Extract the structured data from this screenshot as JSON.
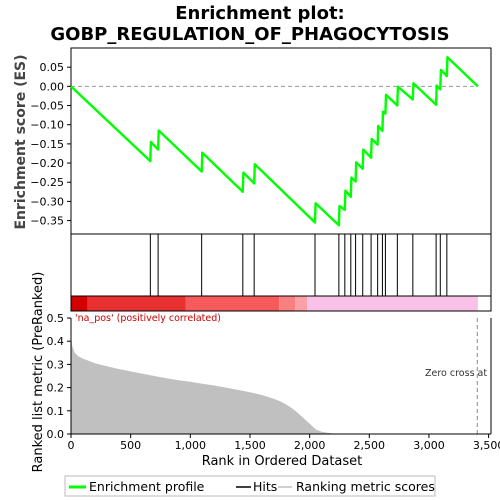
{
  "chart_data": {
    "type": "line",
    "title_line1": "Enrichment plot:",
    "title_line2": "GOBP_REGULATION_OF_PHAGOCYTOSIS",
    "top_panel": {
      "ylabel": "Enrichment score (ES)",
      "ylim": [
        -0.385,
        0.1
      ],
      "yticks": [
        0.05,
        0.0,
        -0.05,
        -0.1,
        -0.15,
        -0.2,
        -0.25,
        -0.3,
        -0.35
      ],
      "ytick_labels": [
        "0.05",
        "0.00",
        "−0.05",
        "−0.10",
        "−0.15",
        "−0.20",
        "−0.25",
        "−0.30",
        "−0.35"
      ],
      "series": [
        {
          "name": "Enrichment profile",
          "color": "#00ff00",
          "x": [
            0,
            665,
            670,
            730,
            735,
            1095,
            1100,
            1440,
            1445,
            1535,
            1540,
            2045,
            2050,
            2245,
            2250,
            2295,
            2300,
            2345,
            2350,
            2385,
            2390,
            2445,
            2450,
            2515,
            2520,
            2570,
            2575,
            2610,
            2615,
            2635,
            2640,
            2735,
            2740,
            2865,
            2870,
            3060,
            3065,
            3095,
            3100,
            3150,
            3155,
            3410
          ],
          "y": [
            0.0,
            -0.195,
            -0.145,
            -0.165,
            -0.115,
            -0.222,
            -0.173,
            -0.275,
            -0.225,
            -0.253,
            -0.203,
            -0.355,
            -0.305,
            -0.362,
            -0.312,
            -0.322,
            -0.272,
            -0.288,
            -0.238,
            -0.248,
            -0.198,
            -0.215,
            -0.165,
            -0.186,
            -0.137,
            -0.152,
            -0.103,
            -0.116,
            -0.066,
            -0.071,
            -0.022,
            -0.05,
            -0.001,
            -0.034,
            0.008,
            -0.048,
            0.002,
            -0.008,
            0.043,
            0.027,
            0.076,
            0.0
          ]
        }
      ]
    },
    "hits": {
      "label": "Hits",
      "positions": [
        665,
        730,
        1095,
        1440,
        1535,
        2045,
        2245,
        2295,
        2345,
        2385,
        2445,
        2515,
        2570,
        2610,
        2635,
        2735,
        2865,
        3060,
        3095,
        3150
      ]
    },
    "color_bar": {
      "segments": [
        {
          "from": 0,
          "to": 140,
          "color": "#d40000"
        },
        {
          "from": 140,
          "to": 960,
          "color": "#e83030"
        },
        {
          "from": 960,
          "to": 1745,
          "color": "#f75a5a"
        },
        {
          "from": 1745,
          "to": 1880,
          "color": "#f98080"
        },
        {
          "from": 1880,
          "to": 1980,
          "color": "#fba0a6"
        },
        {
          "from": 1980,
          "to": 3410,
          "color": "#f9c0e8"
        }
      ]
    },
    "bottom_panel": {
      "ylabel": "Ranked list metric (PreRanked)",
      "xlabel": "Rank in Ordered Dataset",
      "ylim": [
        0.0,
        0.5
      ],
      "yticks": [
        0.0,
        0.1,
        0.2,
        0.3,
        0.4,
        0.5
      ],
      "ytick_labels": [
        "0.0",
        "0.1",
        "0.2",
        "0.3",
        "0.4",
        "0.5"
      ],
      "xlim": [
        0,
        3520
      ],
      "xticks": [
        0,
        500,
        1000,
        1500,
        2000,
        2500,
        3000,
        3500
      ],
      "xtick_labels": [
        "0",
        "500",
        "1,000",
        "1,500",
        "2,000",
        "2,500",
        "3,000",
        "3,500"
      ],
      "series": [
        {
          "name": "Ranking metric scores",
          "color": "#c0c0c0",
          "x": [
            0,
            10,
            30,
            60,
            100,
            150,
            200,
            300,
            400,
            500,
            600,
            700,
            800,
            900,
            1000,
            1100,
            1200,
            1300,
            1400,
            1500,
            1600,
            1700,
            1750,
            1800,
            1850,
            1900,
            1950,
            2000,
            2050,
            2100,
            2150,
            2200,
            2250,
            2300,
            3410
          ],
          "y": [
            0.42,
            0.38,
            0.35,
            0.335,
            0.325,
            0.315,
            0.305,
            0.292,
            0.28,
            0.27,
            0.26,
            0.25,
            0.24,
            0.232,
            0.225,
            0.217,
            0.209,
            0.2,
            0.19,
            0.18,
            0.168,
            0.152,
            0.142,
            0.128,
            0.112,
            0.092,
            0.068,
            0.045,
            0.02,
            0.01,
            0.005,
            0.002,
            0.001,
            0.0,
            0.0
          ]
        }
      ],
      "zero_cross": 3405
    },
    "annotation_pos": "'na_pos' (positively correlated)",
    "annotation_zero": "Zero cross at",
    "legend": {
      "placement": "bottom",
      "items": [
        {
          "label": "Enrichment profile",
          "color": "#00ff00"
        },
        {
          "label": "Hits",
          "color": "#000000"
        },
        {
          "label": "Ranking metric scores",
          "color": "#c0c0c0"
        }
      ]
    }
  }
}
